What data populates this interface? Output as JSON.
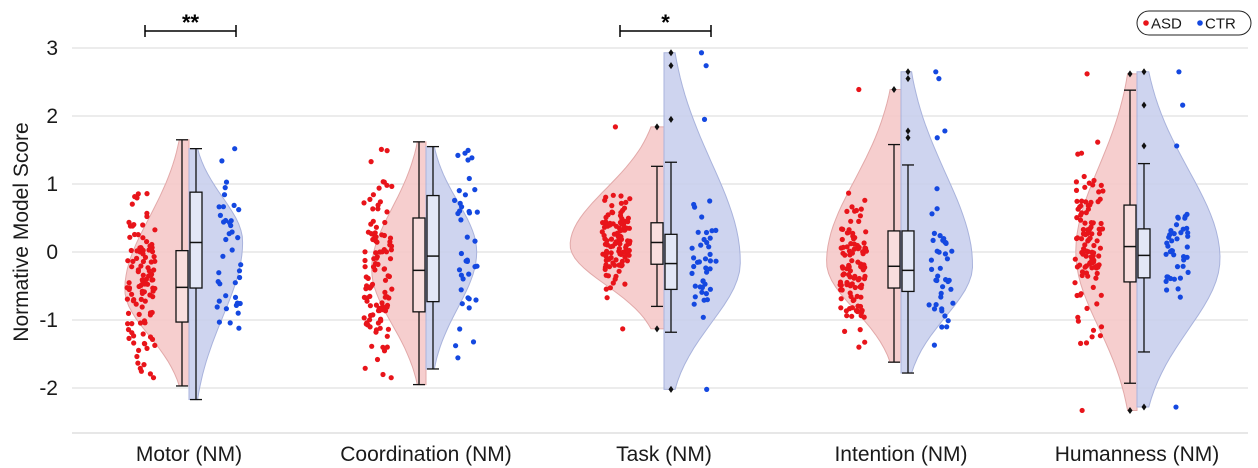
{
  "chart_data": {
    "type": "raincloud",
    "ylabel": "Normative Model Score",
    "ylim": [
      -2.6,
      3.3
    ],
    "yticks": [
      -2,
      -1,
      0,
      1,
      2,
      3
    ],
    "ytick_labels": [
      "-2",
      "-1",
      "0",
      "1",
      "2",
      "3"
    ],
    "grid": true,
    "legend_position": "top-right",
    "categories": [
      "Motor (NM)",
      "Coordination (NM)",
      "Task (NM)",
      "Intention (NM)",
      "Humanness (NM)"
    ],
    "series": [
      {
        "name": "ASD",
        "color": "#e8141a",
        "fill": "#f4c6c6",
        "box_stats": [
          {
            "whislo": -1.97,
            "q1": -1.03,
            "median": -0.52,
            "q3": 0.02,
            "whishi": 1.65,
            "outliers": []
          },
          {
            "whislo": -1.95,
            "q1": -0.88,
            "median": -0.27,
            "q3": 0.5,
            "whishi": 1.62,
            "outliers": []
          },
          {
            "whislo": -0.8,
            "q1": -0.18,
            "median": 0.14,
            "q3": 0.43,
            "whishi": 1.26,
            "outliers": [
              1.84,
              -1.13
            ]
          },
          {
            "whislo": -1.62,
            "q1": -0.53,
            "median": -0.21,
            "q3": 0.31,
            "whishi": 1.58,
            "outliers": [
              2.39
            ]
          },
          {
            "whislo": -1.93,
            "q1": -0.44,
            "median": 0.08,
            "q3": 0.69,
            "whishi": 2.38,
            "outliers": [
              2.62,
              -2.33
            ]
          }
        ],
        "violin_range": [
          [
            -1.97,
            1.65
          ],
          [
            -1.95,
            1.62
          ],
          [
            -1.13,
            1.84
          ],
          [
            -1.62,
            2.39
          ],
          [
            -2.33,
            2.62
          ]
        ],
        "violin_mode": [
          -0.55,
          -0.25,
          0.1,
          -0.15,
          0.0
        ]
      },
      {
        "name": "CTR",
        "color": "#1448e0",
        "fill": "#c5cdec",
        "box_stats": [
          {
            "whislo": -2.17,
            "q1": -0.53,
            "median": 0.14,
            "q3": 0.88,
            "whishi": 1.52,
            "outliers": []
          },
          {
            "whislo": -1.72,
            "q1": -0.73,
            "median": -0.06,
            "q3": 0.83,
            "whishi": 1.55,
            "outliers": []
          },
          {
            "whislo": -1.18,
            "q1": -0.55,
            "median": -0.17,
            "q3": 0.26,
            "whishi": 1.32,
            "outliers": [
              2.93,
              2.74,
              1.95,
              -2.02
            ]
          },
          {
            "whislo": -1.78,
            "q1": -0.58,
            "median": -0.27,
            "q3": 0.31,
            "whishi": 1.28,
            "outliers": [
              2.65,
              2.55,
              1.78,
              1.68
            ]
          },
          {
            "whislo": -1.47,
            "q1": -0.38,
            "median": -0.05,
            "q3": 0.34,
            "whishi": 1.3,
            "outliers": [
              2.65,
              2.16,
              1.56,
              -2.28
            ]
          }
        ],
        "violin_range": [
          [
            -2.17,
            1.52
          ],
          [
            -1.72,
            1.55
          ],
          [
            -2.02,
            2.93
          ],
          [
            -1.78,
            2.65
          ],
          [
            -2.28,
            2.65
          ]
        ],
        "violin_mode": [
          0.15,
          0.0,
          -0.15,
          -0.2,
          -0.1
        ]
      }
    ],
    "significance": [
      {
        "category": "Motor (NM)",
        "label": "**"
      },
      {
        "category": "Task (NM)",
        "label": "*"
      }
    ]
  },
  "seed": 7
}
